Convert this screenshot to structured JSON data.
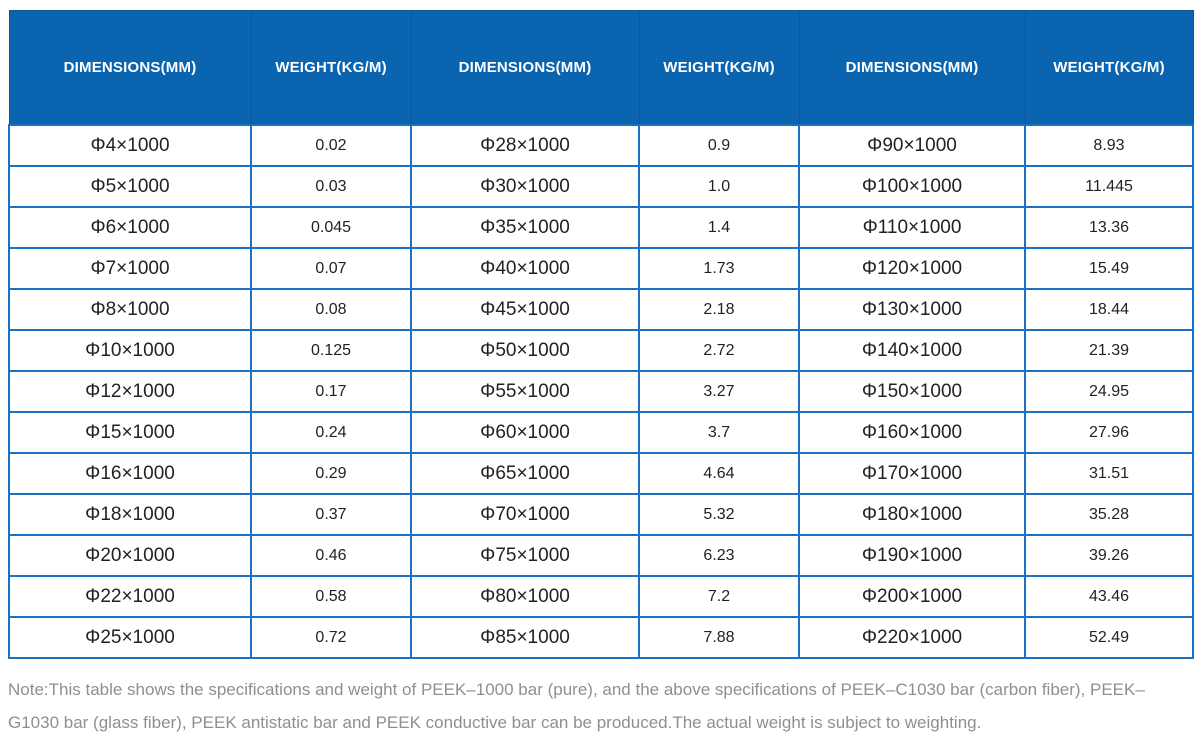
{
  "colors": {
    "header_bg": "#0a64b0",
    "header_divider": "#0b5795",
    "grid_border": "#1a72c5",
    "cell_text": "#222222",
    "note_text": "#8f8f8f"
  },
  "table": {
    "header_columns": [
      {
        "label": "DIMENSIONS(MM)",
        "kind": "dimensions"
      },
      {
        "label": "WEIGHT(KG/M)",
        "kind": "weight"
      },
      {
        "label": "DIMENSIONS(MM)",
        "kind": "dimensions"
      },
      {
        "label": "WEIGHT(KG/M)",
        "kind": "weight"
      },
      {
        "label": "DIMENSIONS(MM)",
        "kind": "dimensions"
      },
      {
        "label": "WEIGHT(KG/M)",
        "kind": "weight"
      }
    ],
    "rows": [
      [
        "Φ4×1000",
        "0.02",
        "Φ28×1000",
        "0.9",
        "Φ90×1000",
        "8.93"
      ],
      [
        "Φ5×1000",
        "0.03",
        "Φ30×1000",
        "1.0",
        "Φ100×1000",
        "11.445"
      ],
      [
        "Φ6×1000",
        "0.045",
        "Φ35×1000",
        "1.4",
        "Φ110×1000",
        "13.36"
      ],
      [
        "Φ7×1000",
        "0.07",
        "Φ40×1000",
        "1.73",
        "Φ120×1000",
        "15.49"
      ],
      [
        "Φ8×1000",
        "0.08",
        "Φ45×1000",
        "2.18",
        "Φ130×1000",
        "18.44"
      ],
      [
        "Φ10×1000",
        "0.125",
        "Φ50×1000",
        "2.72",
        "Φ140×1000",
        "21.39"
      ],
      [
        "Φ12×1000",
        "0.17",
        "Φ55×1000",
        "3.27",
        "Φ150×1000",
        "24.95"
      ],
      [
        "Φ15×1000",
        "0.24",
        "Φ60×1000",
        "3.7",
        "Φ160×1000",
        "27.96"
      ],
      [
        "Φ16×1000",
        "0.29",
        "Φ65×1000",
        "4.64",
        "Φ170×1000",
        "31.51"
      ],
      [
        "Φ18×1000",
        "0.37",
        "Φ70×1000",
        "5.32",
        "Φ180×1000",
        "35.28"
      ],
      [
        "Φ20×1000",
        "0.46",
        "Φ75×1000",
        "6.23",
        "Φ190×1000",
        "39.26"
      ],
      [
        "Φ22×1000",
        "0.58",
        "Φ80×1000",
        "7.2",
        "Φ200×1000",
        "43.46"
      ],
      [
        "Φ25×1000",
        "0.72",
        "Φ85×1000",
        "7.88",
        "Φ220×1000",
        "52.49"
      ]
    ]
  },
  "note": {
    "text": "Note:This table shows the specifications and weight of PEEK–1000 bar (pure), and the above specifications of PEEK–C1030 bar (carbon fiber), PEEK–G1030 bar (glass fiber), PEEK antistatic bar and PEEK conductive bar can be produced.The actual weight is subject to weighting."
  }
}
